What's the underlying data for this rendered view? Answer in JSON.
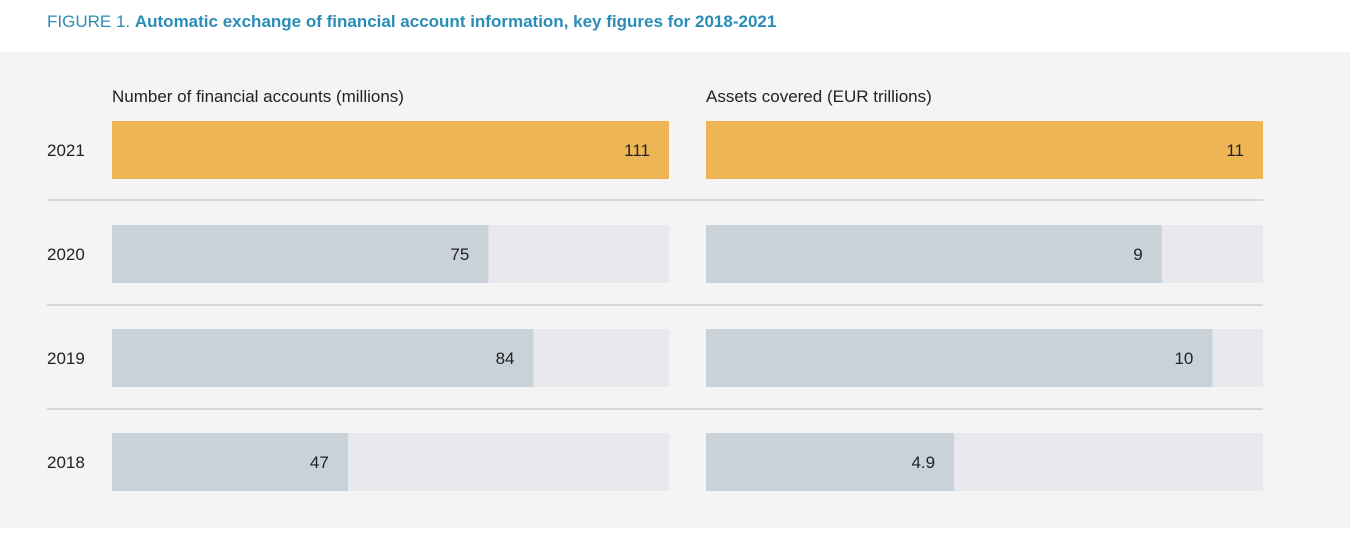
{
  "figure": {
    "prefix": "FIGURE 1.",
    "title": "Automatic exchange of financial account information, key figures for 2018-2021"
  },
  "colors": {
    "highlight": "#eeb554",
    "bar": "#cad2d9",
    "track": "#e7e9ec",
    "divider": "#b8b8b8",
    "title": "#2a8db8"
  },
  "chart_data": {
    "type": "bar",
    "orientation": "horizontal",
    "categories": [
      "2021",
      "2020",
      "2019",
      "2018"
    ],
    "panels": [
      {
        "xlabel": "Number of financial accounts (millions)",
        "values": [
          111,
          75,
          84,
          47
        ],
        "value_labels": [
          "111",
          "75",
          "84",
          "47"
        ],
        "xlim": [
          0,
          111
        ]
      },
      {
        "xlabel": "Assets covered (EUR trillions)",
        "values": [
          11,
          9,
          10,
          4.9
        ],
        "value_labels": [
          "11",
          "9",
          "10",
          "4.9"
        ],
        "xlim": [
          0,
          11
        ]
      }
    ],
    "highlighted_category": "2021",
    "grid": false,
    "legend": "none"
  }
}
